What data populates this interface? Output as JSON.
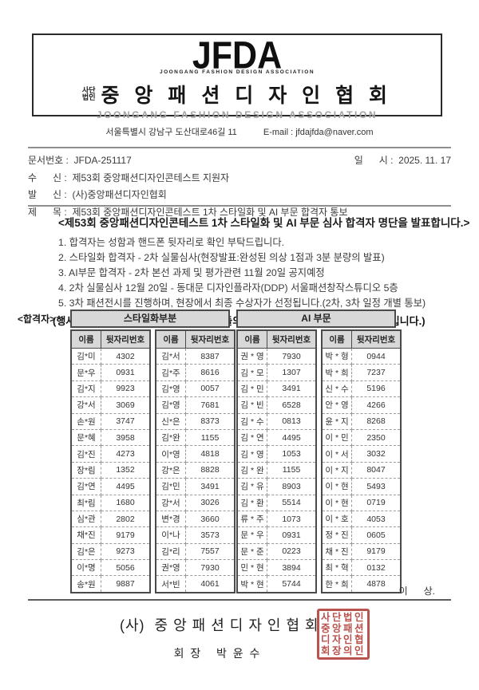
{
  "header": {
    "logo": "JFDA",
    "logo_subtitle": "JOONGANG FASHION DESIGN ASSOCIATION",
    "org_prefix": "사단\n법인",
    "org_name_kr": "중 앙 패 션 디 자 인 협 회",
    "org_name_en": "JOONGANG FASHION DESIGN ASSOCIATION",
    "address": "서울특별시 강남구 도산대로46길 11",
    "email": "E-mail : jfdajfda@naver.com"
  },
  "doc_info": {
    "doc_no_label": "문서번호 :",
    "doc_no": "JFDA-251117",
    "date_label": "일      시 :",
    "date": "2025. 11. 17",
    "to_label": "수      신 :",
    "to": "제53회 중앙패션디자인콘테스트 지원자",
    "from_label": "발      신 :",
    "from": "(사)중앙패션디자인협회",
    "subject_label": "제      목 :",
    "subject": "제53회 중앙패션디자인콘테스트 1차 스타일화 및 AI 부문 합격자 통보"
  },
  "body": {
    "headline": "<제53회 중앙패션디자인콘테스트 1차 스타일화 및 AI 부문 심사 합격자 명단을 발표합니다.>",
    "items": [
      "1. 합격자는 성함과 핸드폰 뒷자리로 확인 부탁드립니다.",
      "2. 스타일화 합격자 - 2차 실물심사(현장발표:완성된 의상 1점과 3분 분량의 발표)",
      "3. AI부문 합격자 - 2차 본선 과제 및 평가관련 11월 20일 공지예정",
      "4. 2차 실물심사 12월 20일 - 동대문 디자인플라자(DDP) 서울패션창작스튜디오 5층",
      "5. 3차 패션전시를 진행하며, 현장에서 최종 수상자가 선정됩니다.(2차, 3차 일정 개별 통보)"
    ],
    "notice": "(행사 안내를 위해 11월 20일 1차합격자들의 단체카톡방 오픈 초대가 있을 예정입니다.)"
  },
  "table": {
    "label": "<합격자>",
    "col_name": "이름",
    "col_num": "뒷자리번호",
    "sections": [
      {
        "title": "스타일화부분",
        "columns": [
          [
            [
              "김*미",
              "4302"
            ],
            [
              "문*우",
              "0931"
            ],
            [
              "김*지",
              "9923"
            ],
            [
              "강*서",
              "3069"
            ],
            [
              "손*원",
              "3747"
            ],
            [
              "문*혜",
              "3958"
            ],
            [
              "김*진",
              "4273"
            ],
            [
              "장*림",
              "1352"
            ],
            [
              "김*연",
              "4495"
            ],
            [
              "최*림",
              "1680"
            ],
            [
              "심*관",
              "2802"
            ],
            [
              "채*진",
              "9179"
            ],
            [
              "김*은",
              "9273"
            ],
            [
              "이*명",
              "5056"
            ],
            [
              "송*원",
              "9887"
            ]
          ],
          [
            [
              "김*서",
              "8387"
            ],
            [
              "김*주",
              "8616"
            ],
            [
              "김*영",
              "0057"
            ],
            [
              "김*영",
              "7681"
            ],
            [
              "신*은",
              "8373"
            ],
            [
              "김*완",
              "1155"
            ],
            [
              "이*영",
              "4818"
            ],
            [
              "강*은",
              "8828"
            ],
            [
              "김*민",
              "3491"
            ],
            [
              "강*서",
              "3026"
            ],
            [
              "변*경",
              "3660"
            ],
            [
              "이*나",
              "3573"
            ],
            [
              "김*리",
              "7557"
            ],
            [
              "권*영",
              "7930"
            ],
            [
              "서*빈",
              "4061"
            ]
          ]
        ]
      },
      {
        "title": "AI 부문",
        "columns": [
          [
            [
              "권 * 영",
              "7930"
            ],
            [
              "김 * 모",
              "1307"
            ],
            [
              "김 * 민",
              "3491"
            ],
            [
              "김 * 빈",
              "6528"
            ],
            [
              "김 * 수",
              "0813"
            ],
            [
              "김 * 연",
              "4495"
            ],
            [
              "김 * 영",
              "1053"
            ],
            [
              "김 * 완",
              "1155"
            ],
            [
              "김 * 유",
              "8903"
            ],
            [
              "김 * 환",
              "5514"
            ],
            [
              "류 * 주",
              "1073"
            ],
            [
              "문 * 우",
              "0931"
            ],
            [
              "문 * 준",
              "0223"
            ],
            [
              "민 * 현",
              "3894"
            ],
            [
              "박 * 현",
              "5744"
            ]
          ],
          [
            [
              "박 * 형",
              "0944"
            ],
            [
              "박 * 희",
              "7237"
            ],
            [
              "신 * 수",
              "5196"
            ],
            [
              "안 * 영",
              "4266"
            ],
            [
              "윤 * 지",
              "8268"
            ],
            [
              "이 * 민",
              "2350"
            ],
            [
              "이 * 서",
              "3032"
            ],
            [
              "이 * 지",
              "8047"
            ],
            [
              "이 * 현",
              "5493"
            ],
            [
              "이 * 현",
              "0719"
            ],
            [
              "이 * 호",
              "4053"
            ],
            [
              "정 * 진",
              "0605"
            ],
            [
              "채 * 진",
              "9179"
            ],
            [
              "최 * 혁",
              "0132"
            ],
            [
              "한 * 희",
              "4878"
            ]
          ]
        ]
      }
    ]
  },
  "footer": {
    "closing": "이      상.",
    "org_line": "(사)  중 앙 패 션 디 자 인 협 회",
    "president_line": "회 장   박 윤 수",
    "seal_lines": [
      "사단법인",
      "중앙패션",
      "디자인협",
      "회장의인"
    ],
    "seal_color": "#b5443e"
  }
}
